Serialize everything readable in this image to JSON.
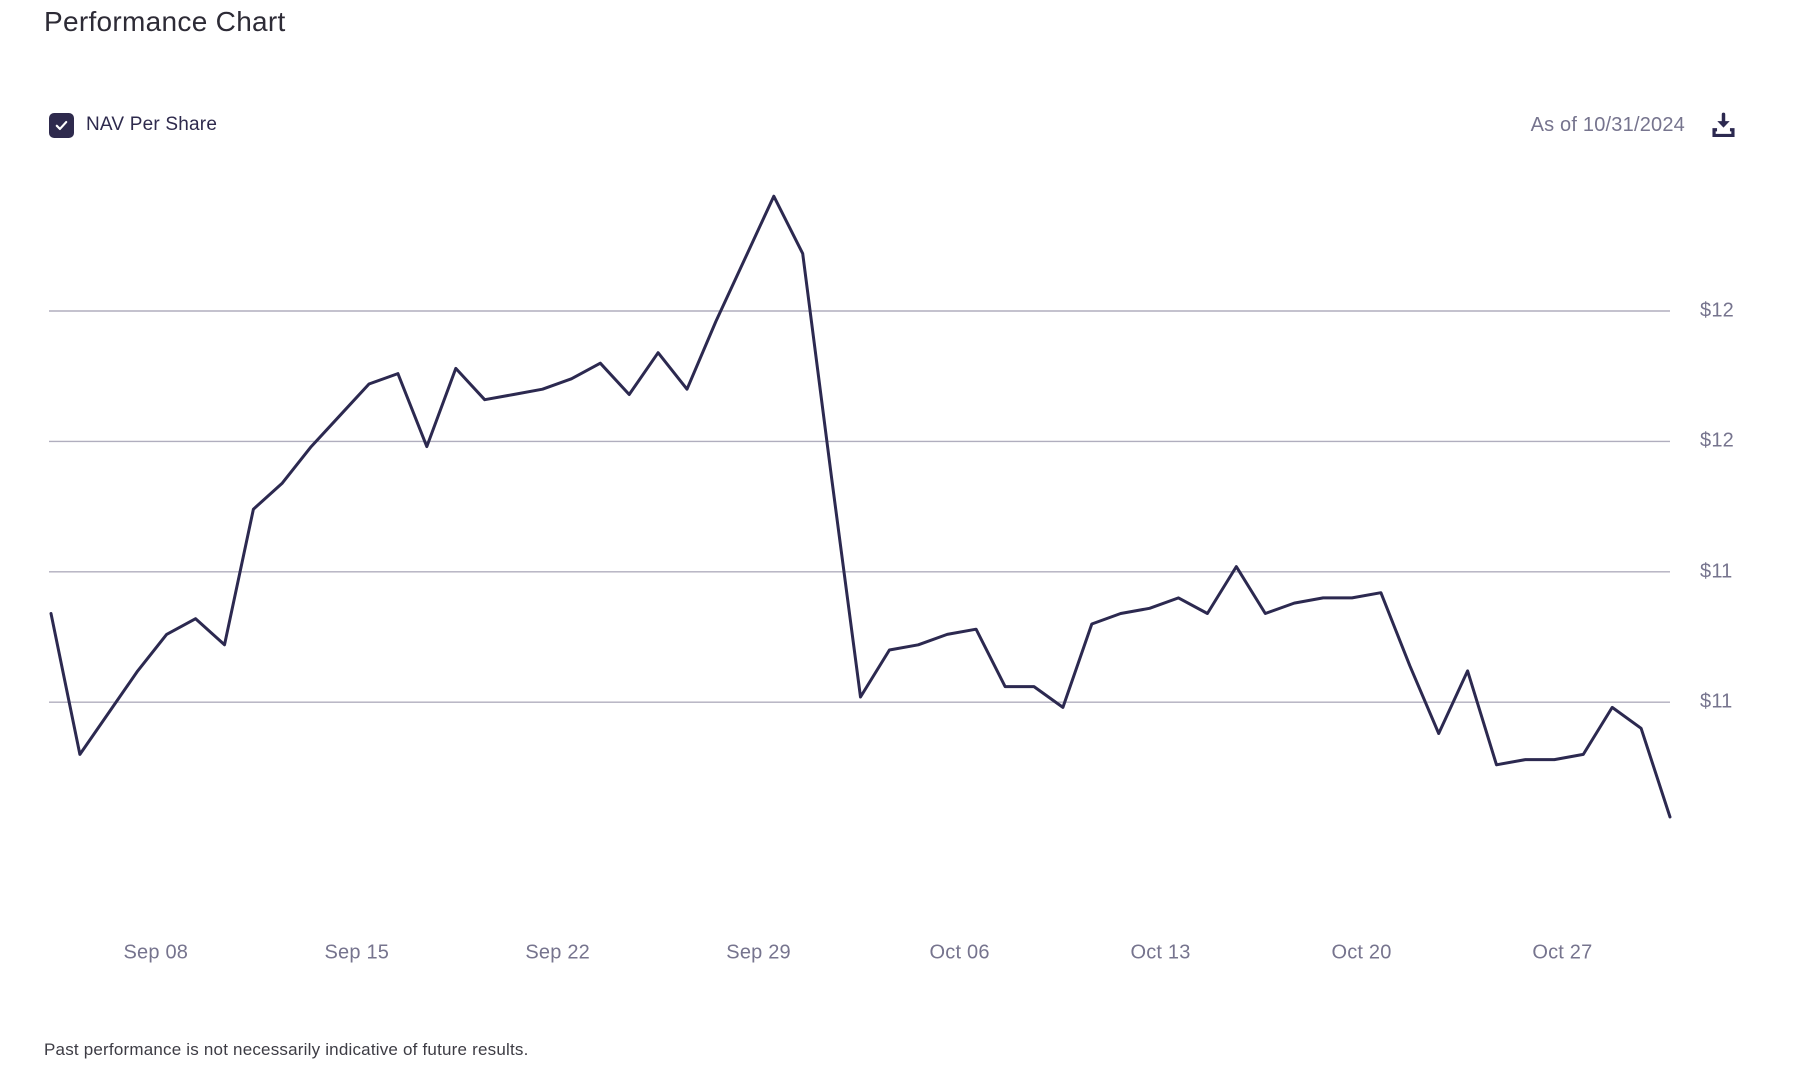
{
  "header": {
    "title": "Performance Chart"
  },
  "legend": {
    "nav_label": "NAV Per Share",
    "checked": true
  },
  "toolbar": {
    "as_of": "As of 10/31/2024",
    "download_icon": "download-icon"
  },
  "footer": {
    "disclaimer": "Past performance is not necessarily indicative of future results."
  },
  "colors": {
    "line": "#2C2950",
    "checkbox": "#2E2A4D",
    "gridline": "#B0AEBE",
    "tick_label": "#76748E",
    "title_text": "#2D2B36"
  },
  "chart_data": {
    "type": "line",
    "title": "Performance Chart",
    "xlabel": "",
    "ylabel": "NAV Per Share ($)",
    "grid": "horizontal-only",
    "legend_position": "top-left",
    "as_of": "10/31/2024",
    "ylim": [
      10.85,
      12.2
    ],
    "y_ticks": [
      {
        "label": "$12",
        "value": 11.9
      },
      {
        "label": "$12",
        "value": 11.65
      },
      {
        "label": "$11",
        "value": 11.4
      },
      {
        "label": "$11",
        "value": 11.15
      }
    ],
    "x_ticks": [
      "Sep 08",
      "Sep 15",
      "Sep 22",
      "Sep 29",
      "Oct 06",
      "Oct 13",
      "Oct 20",
      "Oct 27"
    ],
    "series": [
      {
        "name": "NAV Per Share",
        "dates": [
          "2024-09-05",
          "2024-09-06",
          "2024-09-07",
          "2024-09-08",
          "2024-09-09",
          "2024-09-10",
          "2024-09-11",
          "2024-09-12",
          "2024-09-13",
          "2024-09-14",
          "2024-09-15",
          "2024-09-16",
          "2024-09-17",
          "2024-09-18",
          "2024-09-19",
          "2024-09-20",
          "2024-09-21",
          "2024-09-22",
          "2024-09-23",
          "2024-09-24",
          "2024-09-25",
          "2024-09-26",
          "2024-09-27",
          "2024-09-28",
          "2024-09-29",
          "2024-09-30",
          "2024-10-01",
          "2024-10-02",
          "2024-10-03",
          "2024-10-04",
          "2024-10-05",
          "2024-10-06",
          "2024-10-07",
          "2024-10-08",
          "2024-10-09",
          "2024-10-10",
          "2024-10-11",
          "2024-10-12",
          "2024-10-13",
          "2024-10-14",
          "2024-10-15",
          "2024-10-16",
          "2024-10-17",
          "2024-10-18",
          "2024-10-19",
          "2024-10-20",
          "2024-10-21",
          "2024-10-22",
          "2024-10-23",
          "2024-10-24",
          "2024-10-25",
          "2024-10-26",
          "2024-10-27",
          "2024-10-28",
          "2024-10-29",
          "2024-10-30",
          "2024-10-31"
        ],
        "values": [
          11.32,
          11.05,
          11.13,
          11.21,
          11.28,
          11.31,
          11.26,
          11.52,
          11.57,
          11.64,
          11.7,
          11.76,
          11.78,
          11.64,
          11.79,
          11.73,
          11.74,
          11.75,
          11.77,
          11.8,
          11.74,
          11.82,
          11.75,
          11.88,
          12.0,
          12.12,
          12.01,
          11.58,
          11.16,
          11.25,
          11.26,
          11.28,
          11.29,
          11.18,
          11.18,
          11.14,
          11.3,
          11.32,
          11.33,
          11.35,
          11.32,
          11.41,
          11.32,
          11.34,
          11.35,
          11.35,
          11.36,
          11.22,
          11.09,
          11.21,
          11.03,
          11.04,
          11.04,
          11.05,
          11.14,
          11.1,
          10.93
        ]
      }
    ]
  }
}
